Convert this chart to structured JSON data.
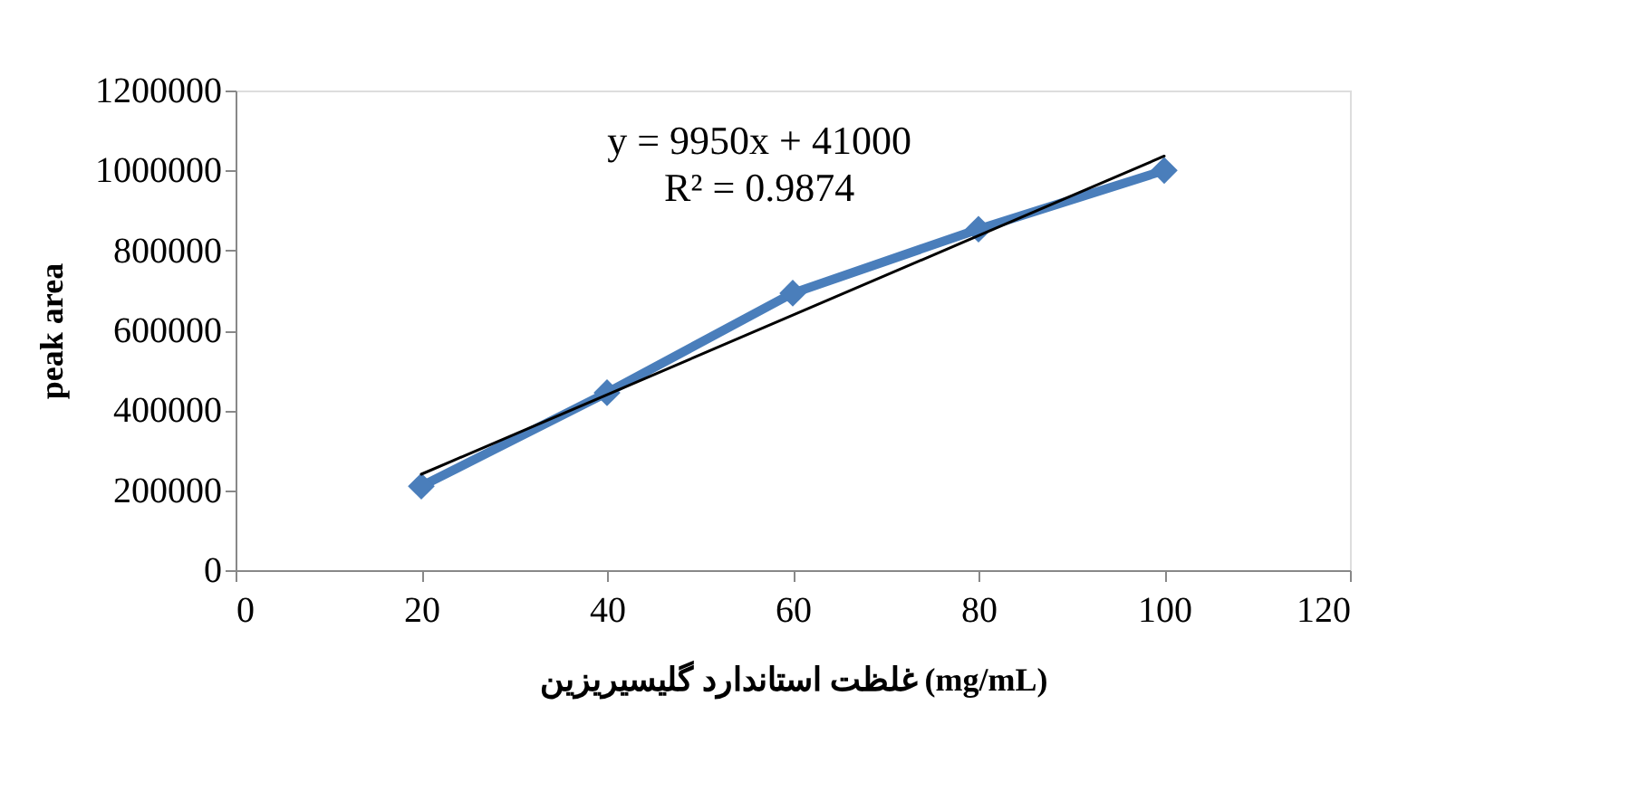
{
  "chart_data": {
    "type": "line",
    "xlabel": "غلظت استاندارد گلیسیریزین (mg/mL)",
    "ylabel": "peak area",
    "x": [
      20,
      40,
      60,
      80,
      100
    ],
    "series": [
      {
        "color": "#4a7ebb",
        "values": [
          210000,
          444000,
          693000,
          853000,
          1000000
        ],
        "marker": "diamond",
        "line_style": "solid"
      },
      {
        "type": "line",
        "color": "#000000",
        "x": [
          20,
          100
        ],
        "values": [
          240000,
          1036000
        ],
        "marker": "none",
        "line_style": "solid"
      }
    ],
    "annotations": [
      "y = 9950x + 41000",
      "R² = 0.9874"
    ],
    "xlim": [
      0,
      120
    ],
    "xticks": [
      0,
      20,
      40,
      60,
      80,
      100,
      120
    ],
    "ylim": [
      0,
      1200000
    ],
    "yticks": [
      0,
      200000,
      400000,
      600000,
      800000,
      1000000,
      1200000
    ],
    "grid": false
  }
}
